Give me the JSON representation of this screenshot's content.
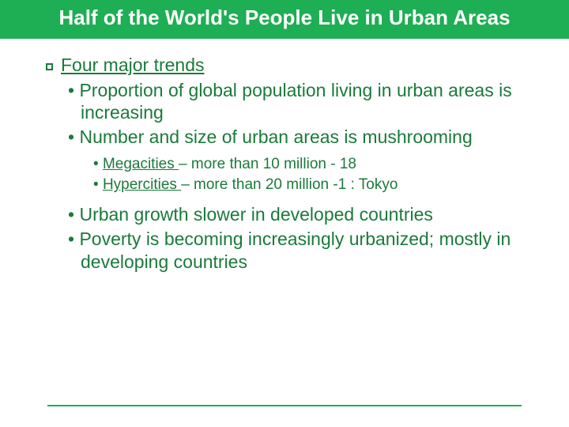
{
  "colors": {
    "band": "#1eae54",
    "text": "#1a7a3a",
    "title": "#ffffff",
    "background": "#ffffff"
  },
  "title": "Half of the World's People Live in Urban Areas",
  "heading": "Four major trends",
  "bullets_top": [
    "Proportion of global population living in urban areas is increasing",
    "Number and size of urban areas is mushrooming"
  ],
  "sub_bullets": [
    {
      "term": "Megacities ",
      "rest": "– more than 10 million - 18"
    },
    {
      "term": "Hypercities ",
      "rest": "– more than 20 million -1 : Tokyo"
    }
  ],
  "bullets_bottom": [
    "Urban growth slower in developed countries",
    "Poverty is becoming increasingly urbanized; mostly in developing countries"
  ],
  "typography": {
    "title_fontsize": 26,
    "body_fontsize": 23,
    "sub_fontsize": 19,
    "font_family": "Arial"
  }
}
